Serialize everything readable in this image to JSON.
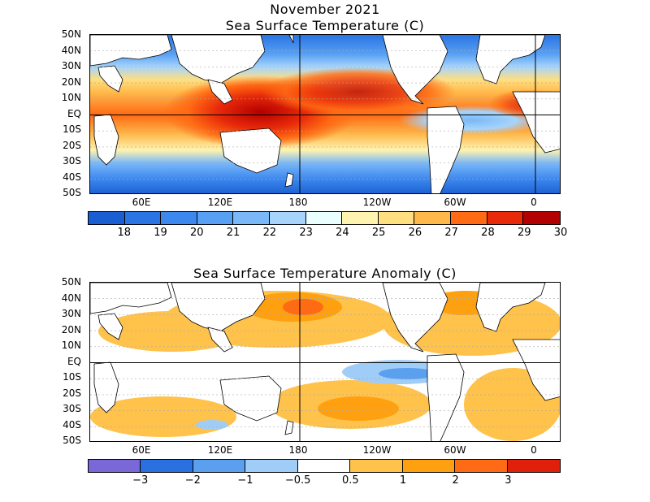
{
  "titles": {
    "main": "November 2021",
    "sst": "Sea Surface Temperature (C)",
    "anom": "Sea Surface Temperature Anomaly (C)"
  },
  "lat_labels": [
    "50N",
    "40N",
    "30N",
    "20N",
    "10N",
    "EQ",
    "10S",
    "20S",
    "30S",
    "40S",
    "50S"
  ],
  "lon_labels": [
    "60E",
    "120E",
    "180",
    "120W",
    "60W",
    "0"
  ],
  "sst_colorbar": {
    "colors": [
      "#1a5fd1",
      "#2a74e3",
      "#3d88ee",
      "#58a0f4",
      "#7ab8f8",
      "#a6d4fb",
      "#eaffff",
      "#fff3b0",
      "#ffdf80",
      "#ffb84a",
      "#ff6a14",
      "#e82a0a",
      "#b30000"
    ],
    "labels": [
      "18",
      "19",
      "20",
      "21",
      "22",
      "23",
      "24",
      "25",
      "26",
      "27",
      "28",
      "29",
      "30"
    ]
  },
  "anom_colorbar": {
    "colors": [
      "#7a68d8",
      "#2a70e0",
      "#5aa0ee",
      "#9fcdf8",
      "#ffffff",
      "#ffc24a",
      "#ffa010",
      "#ff6a14",
      "#e0200a"
    ],
    "labels": [
      "-3",
      "-2",
      "-1",
      "-0.5",
      "0.5",
      "1",
      "2",
      "3"
    ]
  }
}
